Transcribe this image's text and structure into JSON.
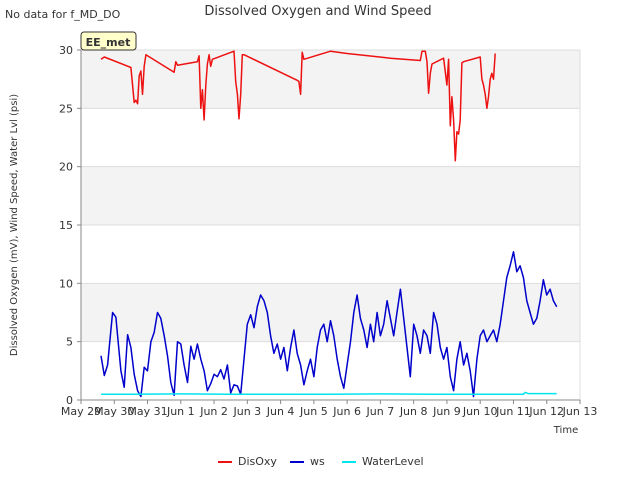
{
  "header": {
    "no_data_note": "No data for f_MD_DO",
    "station_badge": "EE_met"
  },
  "chart_data": {
    "type": "line",
    "title": "Dissolved Oxygen and Wind Speed",
    "xlabel": "Time",
    "ylabel": "Dissolved Oxygen (mV), Wind Speed, Water Lvl (psi)",
    "xlim": [
      0,
      15
    ],
    "ylim": [
      0,
      30
    ],
    "x_ticks": [
      {
        "v": 0,
        "label": "May 29"
      },
      {
        "v": 1,
        "label": "May 30"
      },
      {
        "v": 2,
        "label": "May 31"
      },
      {
        "v": 3,
        "label": "Jun 1"
      },
      {
        "v": 4,
        "label": "Jun 2"
      },
      {
        "v": 5,
        "label": "Jun 3"
      },
      {
        "v": 6,
        "label": "Jun 4"
      },
      {
        "v": 7,
        "label": "Jun 5"
      },
      {
        "v": 8,
        "label": "Jun 6"
      },
      {
        "v": 9,
        "label": "Jun 7"
      },
      {
        "v": 10,
        "label": "Jun 8"
      },
      {
        "v": 11,
        "label": "Jun 9"
      },
      {
        "v": 12,
        "label": "Jun 10"
      },
      {
        "v": 13,
        "label": "Jun 11"
      },
      {
        "v": 14,
        "label": "Jun 12"
      },
      {
        "v": 15,
        "label": "Jun 13"
      }
    ],
    "y_ticks": [
      0,
      5,
      10,
      15,
      20,
      25,
      30
    ],
    "grid": true,
    "legend_placement": "bottom-center",
    "series": [
      {
        "name": "DisOxy",
        "color": "#ee1111",
        "points": [
          [
            0.6,
            29.2
          ],
          [
            0.7,
            29.4
          ],
          [
            1.5,
            28.5
          ],
          [
            1.6,
            25.5
          ],
          [
            1.65,
            25.7
          ],
          [
            1.7,
            25.4
          ],
          [
            1.75,
            27.8
          ],
          [
            1.8,
            28.2
          ],
          [
            1.85,
            26.2
          ],
          [
            1.9,
            28.6
          ],
          [
            1.95,
            29.6
          ],
          [
            2.8,
            28.1
          ],
          [
            2.85,
            29.0
          ],
          [
            2.9,
            28.7
          ],
          [
            3.5,
            29.0
          ],
          [
            3.55,
            29.5
          ],
          [
            3.6,
            25.0
          ],
          [
            3.65,
            26.6
          ],
          [
            3.7,
            24.0
          ],
          [
            3.75,
            27.0
          ],
          [
            3.8,
            28.8
          ],
          [
            3.85,
            29.6
          ],
          [
            3.9,
            28.6
          ],
          [
            3.95,
            29.2
          ],
          [
            4.6,
            29.9
          ],
          [
            4.65,
            27.3
          ],
          [
            4.7,
            26.2
          ],
          [
            4.75,
            24.1
          ],
          [
            4.8,
            26.2
          ],
          [
            4.85,
            29.6
          ],
          [
            4.9,
            29.6
          ],
          [
            6.5,
            27.4
          ],
          [
            6.55,
            27.3
          ],
          [
            6.6,
            26.2
          ],
          [
            6.65,
            29.8
          ],
          [
            6.7,
            29.2
          ],
          [
            7.5,
            29.9
          ],
          [
            8.0,
            29.7
          ],
          [
            9.3,
            29.3
          ],
          [
            10.2,
            29.1
          ],
          [
            10.25,
            29.9
          ],
          [
            10.35,
            29.9
          ],
          [
            10.4,
            29.0
          ],
          [
            10.45,
            26.3
          ],
          [
            10.5,
            28.0
          ],
          [
            10.55,
            28.8
          ],
          [
            10.9,
            29.3
          ],
          [
            11.0,
            27.0
          ],
          [
            11.05,
            29.2
          ],
          [
            11.1,
            23.5
          ],
          [
            11.15,
            26.0
          ],
          [
            11.2,
            24.0
          ],
          [
            11.25,
            20.5
          ],
          [
            11.3,
            23.0
          ],
          [
            11.35,
            22.8
          ],
          [
            11.4,
            24.0
          ],
          [
            11.45,
            28.9
          ],
          [
            11.5,
            29.0
          ],
          [
            12.0,
            29.4
          ],
          [
            12.05,
            27.5
          ],
          [
            12.1,
            27.0
          ],
          [
            12.15,
            26.2
          ],
          [
            12.2,
            25.0
          ],
          [
            12.25,
            26.0
          ],
          [
            12.3,
            27.5
          ],
          [
            12.35,
            28.0
          ],
          [
            12.4,
            27.5
          ],
          [
            12.45,
            29.7
          ]
        ]
      },
      {
        "name": "ws",
        "color": "#0000cc",
        "points": [
          [
            0.6,
            3.8
          ],
          [
            0.7,
            2.1
          ],
          [
            0.8,
            3.0
          ],
          [
            0.9,
            6.0
          ],
          [
            0.95,
            7.5
          ],
          [
            1.05,
            7.1
          ],
          [
            1.1,
            5.5
          ],
          [
            1.2,
            2.5
          ],
          [
            1.3,
            1.1
          ],
          [
            1.4,
            5.6
          ],
          [
            1.5,
            4.5
          ],
          [
            1.6,
            2.2
          ],
          [
            1.7,
            0.8
          ],
          [
            1.8,
            0.3
          ],
          [
            1.9,
            2.8
          ],
          [
            2.0,
            2.5
          ],
          [
            2.1,
            5.0
          ],
          [
            2.2,
            5.8
          ],
          [
            2.3,
            7.5
          ],
          [
            2.4,
            7.0
          ],
          [
            2.5,
            5.5
          ],
          [
            2.6,
            3.8
          ],
          [
            2.7,
            1.5
          ],
          [
            2.8,
            0.4
          ],
          [
            2.9,
            5.0
          ],
          [
            3.0,
            4.8
          ],
          [
            3.1,
            3.0
          ],
          [
            3.2,
            1.5
          ],
          [
            3.3,
            4.6
          ],
          [
            3.4,
            3.5
          ],
          [
            3.5,
            4.8
          ],
          [
            3.6,
            3.5
          ],
          [
            3.7,
            2.5
          ],
          [
            3.8,
            0.8
          ],
          [
            3.9,
            1.4
          ],
          [
            4.0,
            2.2
          ],
          [
            4.1,
            2.0
          ],
          [
            4.2,
            2.6
          ],
          [
            4.3,
            1.8
          ],
          [
            4.4,
            3.0
          ],
          [
            4.5,
            0.6
          ],
          [
            4.6,
            1.3
          ],
          [
            4.7,
            1.2
          ],
          [
            4.8,
            0.5
          ],
          [
            4.9,
            3.5
          ],
          [
            5.0,
            6.5
          ],
          [
            5.1,
            7.3
          ],
          [
            5.2,
            6.2
          ],
          [
            5.3,
            8.0
          ],
          [
            5.4,
            9.0
          ],
          [
            5.5,
            8.5
          ],
          [
            5.6,
            7.5
          ],
          [
            5.7,
            5.5
          ],
          [
            5.8,
            4.0
          ],
          [
            5.9,
            4.8
          ],
          [
            6.0,
            3.5
          ],
          [
            6.1,
            4.5
          ],
          [
            6.2,
            2.5
          ],
          [
            6.3,
            4.5
          ],
          [
            6.4,
            6.0
          ],
          [
            6.5,
            4.0
          ],
          [
            6.6,
            3.0
          ],
          [
            6.7,
            1.3
          ],
          [
            6.8,
            2.5
          ],
          [
            6.9,
            3.5
          ],
          [
            7.0,
            2.0
          ],
          [
            7.1,
            4.5
          ],
          [
            7.2,
            6.0
          ],
          [
            7.3,
            6.5
          ],
          [
            7.4,
            5.0
          ],
          [
            7.5,
            6.8
          ],
          [
            7.6,
            5.5
          ],
          [
            7.7,
            3.5
          ],
          [
            7.8,
            2.0
          ],
          [
            7.9,
            1.0
          ],
          [
            8.0,
            3.0
          ],
          [
            8.1,
            5.0
          ],
          [
            8.2,
            7.5
          ],
          [
            8.3,
            9.0
          ],
          [
            8.4,
            7.0
          ],
          [
            8.5,
            6.0
          ],
          [
            8.6,
            4.5
          ],
          [
            8.7,
            6.5
          ],
          [
            8.8,
            5.0
          ],
          [
            8.9,
            7.5
          ],
          [
            9.0,
            5.5
          ],
          [
            9.1,
            6.5
          ],
          [
            9.2,
            8.5
          ],
          [
            9.3,
            7.0
          ],
          [
            9.4,
            5.5
          ],
          [
            9.5,
            7.5
          ],
          [
            9.6,
            9.5
          ],
          [
            9.7,
            7.0
          ],
          [
            9.8,
            4.5
          ],
          [
            9.9,
            2.0
          ],
          [
            10.0,
            6.5
          ],
          [
            10.1,
            5.5
          ],
          [
            10.2,
            4.0
          ],
          [
            10.3,
            6.0
          ],
          [
            10.4,
            5.5
          ],
          [
            10.5,
            4.0
          ],
          [
            10.6,
            7.5
          ],
          [
            10.7,
            6.5
          ],
          [
            10.8,
            4.5
          ],
          [
            10.9,
            3.5
          ],
          [
            11.0,
            4.5
          ],
          [
            11.1,
            2.0
          ],
          [
            11.2,
            0.8
          ],
          [
            11.3,
            3.5
          ],
          [
            11.4,
            5.0
          ],
          [
            11.5,
            3.0
          ],
          [
            11.6,
            4.0
          ],
          [
            11.7,
            2.5
          ],
          [
            11.8,
            0.3
          ],
          [
            11.9,
            3.5
          ],
          [
            12.0,
            5.5
          ],
          [
            12.1,
            6.0
          ],
          [
            12.2,
            5.0
          ],
          [
            12.3,
            5.5
          ],
          [
            12.4,
            6.0
          ],
          [
            12.5,
            5.0
          ],
          [
            12.6,
            6.5
          ],
          [
            12.7,
            8.5
          ],
          [
            12.8,
            10.5
          ],
          [
            12.9,
            11.5
          ],
          [
            13.0,
            12.7
          ],
          [
            13.1,
            11.0
          ],
          [
            13.2,
            11.5
          ],
          [
            13.3,
            10.5
          ],
          [
            13.4,
            8.5
          ],
          [
            13.5,
            7.5
          ],
          [
            13.6,
            6.5
          ],
          [
            13.7,
            7.0
          ],
          [
            13.8,
            8.5
          ],
          [
            13.9,
            10.3
          ],
          [
            14.0,
            9.0
          ],
          [
            14.1,
            9.5
          ],
          [
            14.2,
            8.5
          ],
          [
            14.3,
            8.0
          ]
        ]
      },
      {
        "name": "WaterLevel",
        "color": "#00e5ee",
        "points": [
          [
            0.6,
            0.5
          ],
          [
            1.5,
            0.5
          ],
          [
            3.0,
            0.52
          ],
          [
            4.5,
            0.5
          ],
          [
            6.0,
            0.5
          ],
          [
            7.5,
            0.5
          ],
          [
            9.0,
            0.52
          ],
          [
            10.5,
            0.5
          ],
          [
            11.5,
            0.5
          ],
          [
            12.5,
            0.5
          ],
          [
            13.3,
            0.5
          ],
          [
            13.35,
            0.65
          ],
          [
            13.45,
            0.55
          ],
          [
            14.0,
            0.55
          ],
          [
            14.3,
            0.55
          ]
        ]
      }
    ]
  }
}
